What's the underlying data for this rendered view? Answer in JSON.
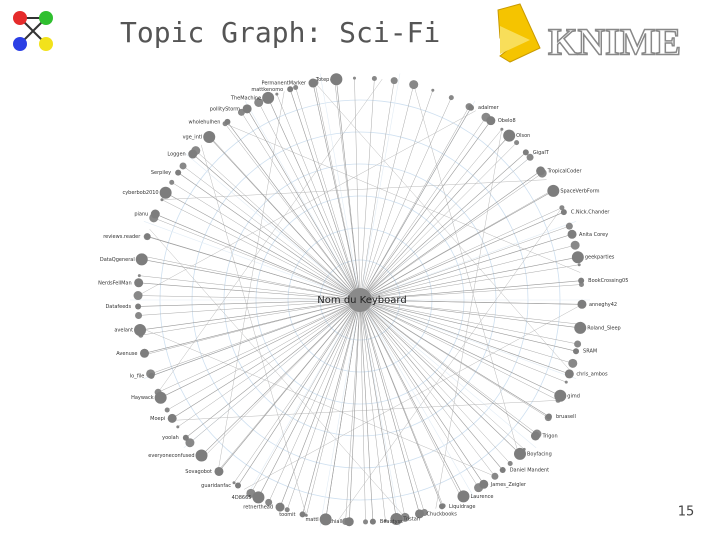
{
  "header": {
    "title": "Topic Graph: Sci-Fi",
    "logo_text": "KNIME"
  },
  "graph": {
    "center": "Nom du Keyboard",
    "nodes": [
      "adalmer",
      "Obelo8",
      "Olson",
      "GigaIT",
      "TropicalCoder",
      "SpaceVerbForm",
      "C.Nick.Chander",
      "Anita Corey",
      "geekparties",
      "BookCrossing05",
      "anneghy42",
      "Roland_Sleep",
      "SRAM",
      "chris_ambos",
      "gimd",
      "bruasell",
      "Trigon",
      "Boyfacing",
      "Daniel Mandent",
      "James_Zeigler",
      "Laurence",
      "Liquidrage",
      "Chuckbooks",
      "Tristan",
      "Beautyss",
      "thiall",
      "mattl",
      "toomit",
      "retnerthead",
      "4D8665",
      "guaridanfac",
      "Sovagobot",
      "everyoneconfused",
      "yoolah",
      "Moepi",
      "Haywack",
      "lo_file",
      "Avenuse",
      "avelant",
      "Datafeeds",
      "NerdsFellMan",
      "DataQgeneral",
      "reviews.reader",
      "pianu",
      "cyberbob2010",
      "Serpiley",
      "Loggen",
      "vge_intl",
      "wholehulhen",
      "pollityStorm",
      "TheMachine",
      "mattkenomo",
      "PermanentMarker",
      "Totep"
    ]
  },
  "footer": {
    "page_number": "15"
  }
}
